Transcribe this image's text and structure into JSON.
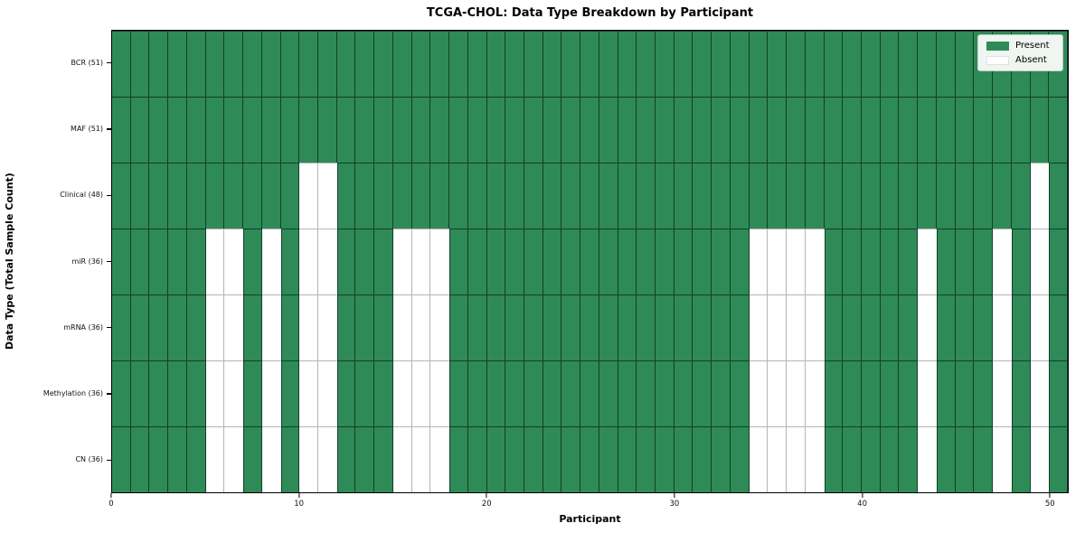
{
  "chart_data": {
    "type": "heatmap",
    "title": "TCGA-CHOL: Data Type Breakdown by Participant",
    "xlabel": "Participant",
    "ylabel": "Data Type (Total Sample Count)",
    "n_participants": 51,
    "x_ticks": [
      0,
      10,
      20,
      30,
      40,
      50
    ],
    "xlim": [
      0,
      51
    ],
    "grid": true,
    "rows": [
      {
        "label": "BCR (51)",
        "present_count": 51,
        "absent": []
      },
      {
        "label": "MAF (51)",
        "present_count": 51,
        "absent": []
      },
      {
        "label": "Clinical (48)",
        "present_count": 48,
        "absent": [
          10,
          11,
          49
        ]
      },
      {
        "label": "miR (36)",
        "present_count": 36,
        "absent": [
          5,
          6,
          8,
          10,
          11,
          15,
          16,
          17,
          34,
          35,
          36,
          37,
          43,
          47,
          49
        ]
      },
      {
        "label": "mRNA (36)",
        "present_count": 36,
        "absent": [
          5,
          6,
          8,
          10,
          11,
          15,
          16,
          17,
          34,
          35,
          36,
          37,
          43,
          47,
          49
        ]
      },
      {
        "label": "Methylation (36)",
        "present_count": 36,
        "absent": [
          5,
          6,
          8,
          10,
          11,
          15,
          16,
          17,
          34,
          35,
          36,
          37,
          43,
          47,
          49
        ]
      },
      {
        "label": "CN (36)",
        "present_count": 36,
        "absent": [
          5,
          6,
          8,
          10,
          11,
          15,
          16,
          17,
          34,
          35,
          36,
          37,
          43,
          47,
          49
        ]
      }
    ],
    "legend": [
      {
        "label": "Present",
        "color": "#2e8b57"
      },
      {
        "label": "Absent",
        "color": "#ffffff"
      }
    ],
    "legend_position": "upper right",
    "colors": {
      "present": "#2e8b57",
      "absent": "#ffffff",
      "grid_on_present": "rgba(0,0,0,0.55)",
      "grid_on_absent": "#b5b5b5",
      "spine": "#000000"
    }
  }
}
